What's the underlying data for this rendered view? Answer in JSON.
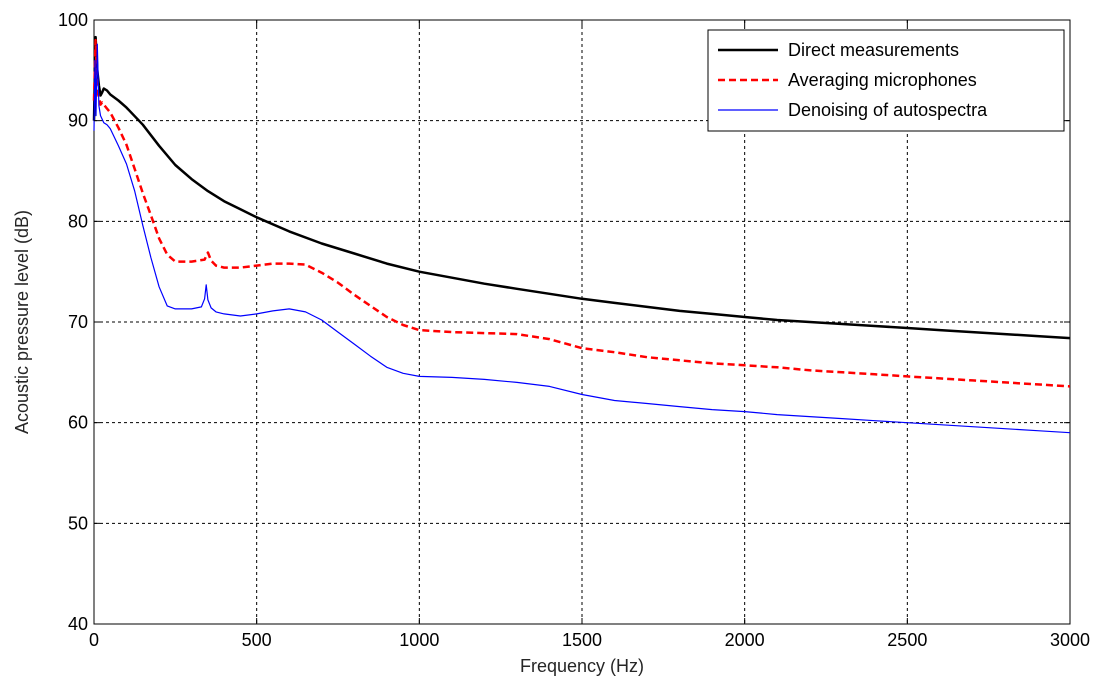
{
  "chart_data": {
    "type": "line",
    "title": "",
    "xlabel": "Frequency (Hz)",
    "ylabel": "Acoustic pressure level (dB)",
    "xlim": [
      0,
      3000
    ],
    "ylim": [
      40,
      100
    ],
    "xticks": [
      "0",
      "500",
      "1000",
      "1500",
      "2000",
      "2500",
      "3000"
    ],
    "yticks": [
      "40",
      "50",
      "60",
      "70",
      "80",
      "90",
      "100"
    ],
    "grid": true,
    "legend_position": "top-right",
    "series": [
      {
        "name": "Direct measurements",
        "color": "#000000",
        "style": "solid",
        "x": [
          0,
          5,
          10,
          15,
          20,
          25,
          30,
          40,
          50,
          75,
          100,
          150,
          200,
          250,
          300,
          350,
          400,
          450,
          500,
          600,
          700,
          800,
          900,
          1000,
          1100,
          1200,
          1300,
          1400,
          1500,
          1600,
          1700,
          1800,
          1900,
          2000,
          2100,
          2200,
          2300,
          2400,
          2500,
          2600,
          2700,
          2800,
          2900,
          3000
        ],
        "y": [
          90,
          98.3,
          95,
          93.5,
          92.5,
          92.8,
          93.2,
          93,
          92.6,
          92,
          91.3,
          89.6,
          87.5,
          85.6,
          84.2,
          83,
          82,
          81.2,
          80.4,
          79,
          77.8,
          76.8,
          75.8,
          75,
          74.4,
          73.8,
          73.3,
          72.8,
          72.3,
          71.9,
          71.5,
          71.1,
          70.8,
          70.5,
          70.2,
          70,
          69.8,
          69.6,
          69.4,
          69.2,
          69,
          68.8,
          68.6,
          68.4
        ]
      },
      {
        "name": "Averaging microphones",
        "color": "#ff0000",
        "style": "dashed",
        "x": [
          0,
          5,
          10,
          15,
          20,
          25,
          30,
          40,
          50,
          75,
          100,
          125,
          150,
          175,
          200,
          225,
          250,
          300,
          340,
          350,
          360,
          375,
          400,
          450,
          500,
          550,
          600,
          650,
          700,
          750,
          800,
          850,
          900,
          950,
          1000,
          1100,
          1200,
          1300,
          1400,
          1500,
          1600,
          1700,
          1800,
          1900,
          2000,
          2100,
          2200,
          2300,
          2400,
          2500,
          2600,
          2700,
          2800,
          2900,
          3000
        ],
        "y": [
          92,
          98,
          93,
          92.3,
          91.6,
          91.8,
          91.6,
          91.2,
          90.8,
          89.3,
          87.6,
          85.2,
          82.8,
          80.6,
          78.3,
          76.7,
          76,
          76,
          76.2,
          76.9,
          76.1,
          75.6,
          75.4,
          75.4,
          75.6,
          75.8,
          75.8,
          75.7,
          74.9,
          73.9,
          72.7,
          71.6,
          70.5,
          69.7,
          69.2,
          69,
          68.9,
          68.8,
          68.3,
          67.4,
          67,
          66.5,
          66.2,
          65.9,
          65.7,
          65.5,
          65.2,
          65,
          64.8,
          64.6,
          64.4,
          64.2,
          64,
          63.8,
          63.6
        ]
      },
      {
        "name": "Denoising of autospectra",
        "color": "#0000ff",
        "style": "solid",
        "x": [
          0,
          3,
          6,
          10,
          15,
          20,
          30,
          40,
          50,
          75,
          100,
          125,
          150,
          175,
          200,
          225,
          250,
          300,
          330,
          340,
          345,
          350,
          360,
          375,
          400,
          450,
          500,
          550,
          600,
          650,
          700,
          750,
          800,
          850,
          900,
          950,
          1000,
          1100,
          1200,
          1300,
          1400,
          1500,
          1600,
          1700,
          1800,
          1900,
          2000,
          2100,
          2200,
          2300,
          2400,
          2500,
          2600,
          2700,
          2800,
          2900,
          3000
        ],
        "y": [
          89,
          96,
          90.5,
          97.6,
          91.5,
          90.5,
          89.8,
          89.6,
          89.2,
          87.5,
          85.7,
          83,
          79.6,
          76.4,
          73.5,
          71.6,
          71.3,
          71.3,
          71.5,
          72.3,
          73.7,
          72.2,
          71.4,
          71,
          70.8,
          70.6,
          70.8,
          71.1,
          71.3,
          71,
          70.2,
          69,
          67.8,
          66.6,
          65.5,
          64.9,
          64.6,
          64.5,
          64.3,
          64,
          63.6,
          62.8,
          62.2,
          61.9,
          61.6,
          61.3,
          61.1,
          60.8,
          60.6,
          60.4,
          60.2,
          60,
          59.8,
          59.6,
          59.4,
          59.2,
          59
        ]
      }
    ]
  }
}
